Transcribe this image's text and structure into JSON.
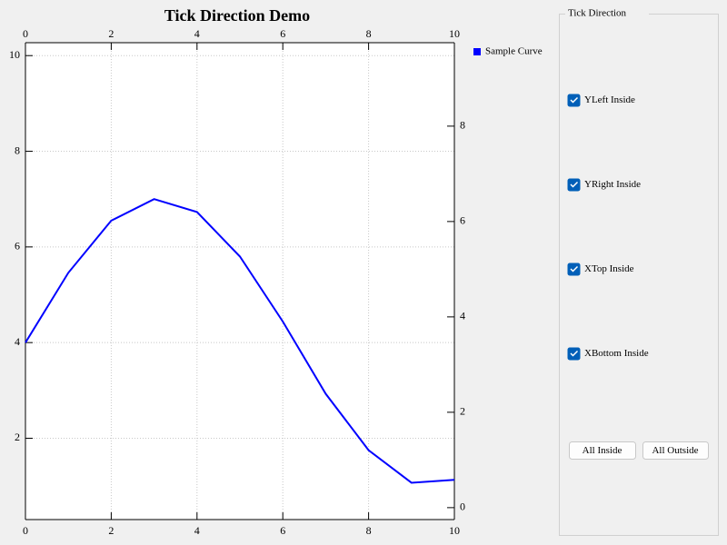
{
  "chart_data": {
    "type": "line",
    "title": "Tick Direction Demo",
    "x": [
      0,
      1,
      2,
      3,
      4,
      5,
      6,
      7,
      8,
      9,
      10
    ],
    "series": [
      {
        "name": "Sample Curve",
        "color": "#0000ff",
        "values": [
          4.0,
          5.46,
          6.55,
          7.0,
          6.73,
          5.8,
          4.44,
          2.93,
          1.75,
          1.07,
          1.13
        ]
      }
    ],
    "xlim": [
      0,
      10
    ],
    "xticks": [
      0,
      2,
      4,
      6,
      8,
      10
    ],
    "ylim": [
      0.3,
      10.27
    ],
    "yticks": [
      2,
      4,
      6,
      8,
      10
    ],
    "y2lim": [
      -0.25,
      9.75
    ],
    "y2ticks": [
      0,
      2,
      4,
      6,
      8
    ],
    "grid": true,
    "legend": "right"
  },
  "controls": {
    "group_title": "Tick Direction",
    "checkboxes": [
      {
        "label": "YLeft Inside",
        "checked": true
      },
      {
        "label": "YRight Inside",
        "checked": true
      },
      {
        "label": "XTop Inside",
        "checked": true
      },
      {
        "label": "XBottom Inside",
        "checked": true
      }
    ],
    "buttons": [
      "All Inside",
      "All Outside"
    ]
  }
}
